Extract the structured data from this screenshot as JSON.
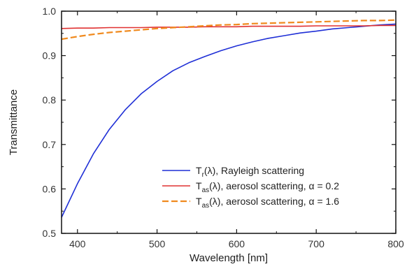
{
  "chart_data": {
    "type": "line",
    "xlabel": "Wavelength [nm]",
    "ylabel": "Transmittance",
    "xlim": [
      380,
      800
    ],
    "ylim": [
      0.5,
      1.0
    ],
    "x_ticks": [
      400,
      500,
      600,
      700,
      800
    ],
    "y_ticks": [
      0.5,
      0.6,
      0.7,
      0.8,
      0.9,
      1.0
    ],
    "x_tick_labels": [
      "400",
      "500",
      "600",
      "700",
      "800"
    ],
    "y_tick_labels": [
      "0.5",
      "0.6",
      "0.7",
      "0.8",
      "0.9",
      "1.0"
    ],
    "grid": false,
    "legend_position": "bottom-right",
    "x": [
      380,
      400,
      420,
      440,
      460,
      480,
      500,
      520,
      540,
      560,
      580,
      600,
      620,
      640,
      660,
      680,
      700,
      720,
      740,
      760,
      780,
      800
    ],
    "series": [
      {
        "name": "Rayleigh scattering",
        "legend_main": "T",
        "legend_sub": "r",
        "legend_rest": "(λ), Rayleigh scattering",
        "color": "#1f2fd6",
        "dash": "solid",
        "values": [
          0.536,
          0.612,
          0.679,
          0.734,
          0.778,
          0.814,
          0.842,
          0.866,
          0.884,
          0.898,
          0.911,
          0.922,
          0.931,
          0.939,
          0.945,
          0.951,
          0.955,
          0.96,
          0.963,
          0.966,
          0.969,
          0.971
        ]
      },
      {
        "name": "aerosol scattering, α = 0.2",
        "legend_main": "T",
        "legend_sub": "as",
        "legend_rest": "(λ), aerosol scattering, α = 0.2",
        "color": "#e03131",
        "dash": "solid",
        "values": [
          0.961,
          0.962,
          0.962,
          0.963,
          0.963,
          0.963,
          0.964,
          0.964,
          0.964,
          0.965,
          0.965,
          0.965,
          0.966,
          0.966,
          0.966,
          0.966,
          0.967,
          0.967,
          0.967,
          0.967,
          0.968,
          0.968
        ]
      },
      {
        "name": "aerosol scattering, α = 1.6",
        "legend_main": "T",
        "legend_sub": "as",
        "legend_rest": "(λ), aerosol scattering, α = 1.6",
        "color": "#f08a1e",
        "dash": "dashed",
        "values": [
          0.937,
          0.943,
          0.948,
          0.952,
          0.955,
          0.958,
          0.961,
          0.963,
          0.965,
          0.967,
          0.969,
          0.97,
          0.972,
          0.973,
          0.974,
          0.975,
          0.976,
          0.977,
          0.978,
          0.979,
          0.979,
          0.98
        ]
      }
    ]
  }
}
